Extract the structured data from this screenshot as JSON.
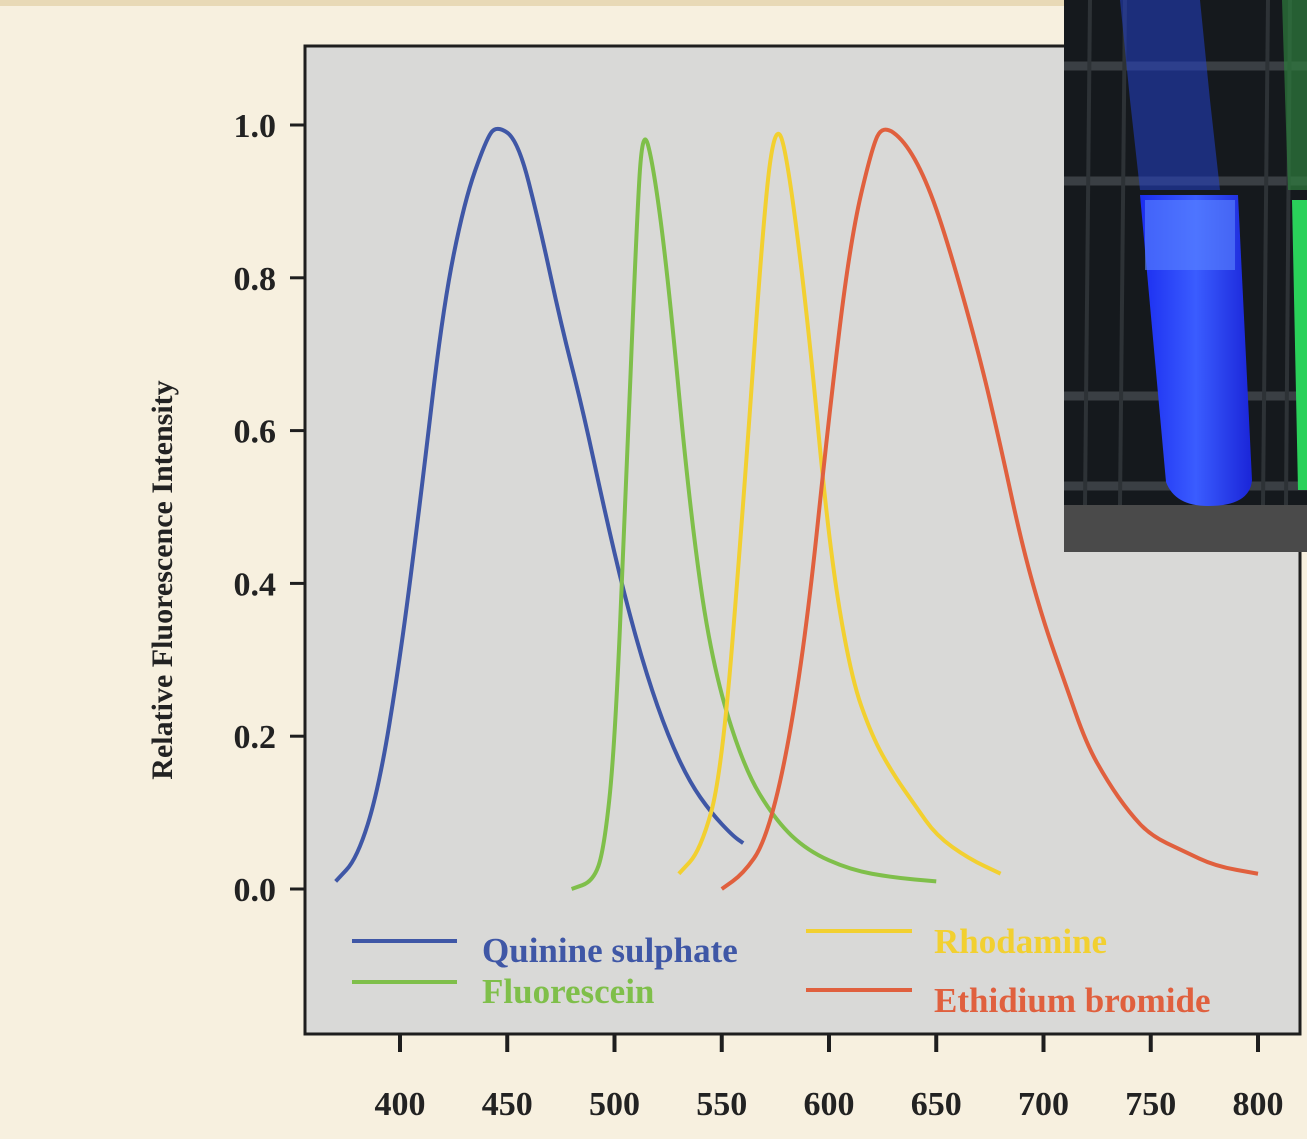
{
  "chart_data": {
    "type": "line",
    "title": "",
    "xlabel": "",
    "ylabel": "Relative Fluorescence Intensity",
    "xlim": [
      350,
      800
    ],
    "ylim": [
      -0.19,
      1.1
    ],
    "x_ticks": [
      400,
      450,
      500,
      550,
      600,
      650,
      700,
      750,
      800
    ],
    "y_ticks": [
      0.0,
      0.2,
      0.4,
      0.6,
      0.8,
      1.0
    ],
    "y_tick_labels": [
      "0.0",
      "0.2",
      "0.4",
      "0.6",
      "0.8",
      "1.0"
    ],
    "grid": false,
    "legend_position": "bottom",
    "series": [
      {
        "name": "Quinine sulphate",
        "color": "#3f57a6",
        "points": [
          [
            370,
            0.01
          ],
          [
            380,
            0.04
          ],
          [
            390,
            0.13
          ],
          [
            400,
            0.3
          ],
          [
            410,
            0.52
          ],
          [
            420,
            0.76
          ],
          [
            430,
            0.9
          ],
          [
            440,
            0.98
          ],
          [
            445,
            1.0
          ],
          [
            455,
            0.98
          ],
          [
            465,
            0.87
          ],
          [
            475,
            0.74
          ],
          [
            485,
            0.63
          ],
          [
            495,
            0.5
          ],
          [
            505,
            0.38
          ],
          [
            515,
            0.28
          ],
          [
            525,
            0.2
          ],
          [
            535,
            0.14
          ],
          [
            545,
            0.1
          ],
          [
            555,
            0.07
          ],
          [
            560,
            0.06
          ]
        ]
      },
      {
        "name": "Fluorescein",
        "color": "#7fbf4a",
        "points": [
          [
            480,
            0.0
          ],
          [
            490,
            0.01
          ],
          [
            495,
            0.05
          ],
          [
            500,
            0.18
          ],
          [
            505,
            0.5
          ],
          [
            510,
            0.85
          ],
          [
            513,
            1.0
          ],
          [
            518,
            0.95
          ],
          [
            525,
            0.8
          ],
          [
            535,
            0.5
          ],
          [
            545,
            0.3
          ],
          [
            560,
            0.16
          ],
          [
            575,
            0.09
          ],
          [
            590,
            0.05
          ],
          [
            610,
            0.025
          ],
          [
            630,
            0.015
          ],
          [
            650,
            0.01
          ]
        ]
      },
      {
        "name": "Rhodamine",
        "color": "#f2d030",
        "points": [
          [
            530,
            0.02
          ],
          [
            540,
            0.05
          ],
          [
            550,
            0.15
          ],
          [
            560,
            0.5
          ],
          [
            570,
            0.9
          ],
          [
            575,
            1.0
          ],
          [
            580,
            0.97
          ],
          [
            590,
            0.75
          ],
          [
            600,
            0.45
          ],
          [
            610,
            0.28
          ],
          [
            620,
            0.2
          ],
          [
            630,
            0.15
          ],
          [
            640,
            0.11
          ],
          [
            650,
            0.07
          ],
          [
            665,
            0.04
          ],
          [
            680,
            0.02
          ]
        ]
      },
      {
        "name": "Ethidium bromide",
        "color": "#e0603e",
        "points": [
          [
            550,
            0.0
          ],
          [
            560,
            0.02
          ],
          [
            570,
            0.06
          ],
          [
            580,
            0.17
          ],
          [
            590,
            0.35
          ],
          [
            600,
            0.62
          ],
          [
            610,
            0.85
          ],
          [
            620,
            0.97
          ],
          [
            625,
            1.0
          ],
          [
            635,
            0.98
          ],
          [
            645,
            0.93
          ],
          [
            655,
            0.85
          ],
          [
            670,
            0.7
          ],
          [
            680,
            0.58
          ],
          [
            690,
            0.45
          ],
          [
            700,
            0.35
          ],
          [
            710,
            0.27
          ],
          [
            720,
            0.19
          ],
          [
            730,
            0.14
          ],
          [
            740,
            0.1
          ],
          [
            750,
            0.07
          ],
          [
            765,
            0.05
          ],
          [
            780,
            0.03
          ],
          [
            800,
            0.02
          ]
        ]
      }
    ]
  },
  "photo": {
    "description_icon": "fluorescent-test-tubes-photo"
  }
}
